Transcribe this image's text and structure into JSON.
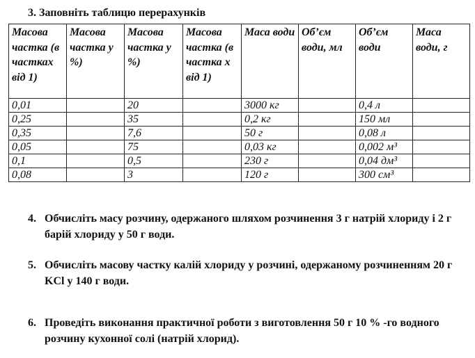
{
  "task3": {
    "title": "3.  Заповніть таблицю перерахунків",
    "headers": [
      "Масова частка (в частках від 1)",
      "Масова частка у %)",
      "Масова частка у %)",
      "Масова частка (в частка х від 1)",
      "Маса води",
      "Об’єм води, мл",
      "Об’єм води",
      "Маса води, г"
    ],
    "rows": [
      [
        "0,01",
        "",
        "20",
        "",
        "3000 кг",
        "",
        "0,4 л",
        ""
      ],
      [
        "0,25",
        "",
        "35",
        "",
        "0,2 кг",
        "",
        "150 мл",
        ""
      ],
      [
        "0,35",
        "",
        "7,6",
        "",
        "50 г",
        "",
        "0,08 л",
        ""
      ],
      [
        "0,05",
        "",
        "75",
        "",
        "0,03 кг",
        "",
        "0,002 м³",
        ""
      ],
      [
        "0,1",
        "",
        "0,5",
        "",
        "230 г",
        "",
        "0,04 дм³",
        ""
      ],
      [
        "0,08",
        "",
        "3",
        "",
        "120 г",
        "",
        "300 см³",
        ""
      ]
    ]
  },
  "questions": [
    {
      "num": "4.",
      "text": "Обчисліть масу розчину, одержаного шляхом розчинення 3 г натрій хлориду і 2 г барій хлориду у 50 г води."
    },
    {
      "num": "5.",
      "text": "Обчисліть масову частку калій хлориду у розчині, одержаному розчиненням 20 г KCl у 140 г води."
    },
    {
      "num": "6.",
      "text": "Проведіть виконання практичної роботи з виготовлення 50 г 10 % -го водного розчину кухонної солі (натрій хлорид)."
    }
  ]
}
